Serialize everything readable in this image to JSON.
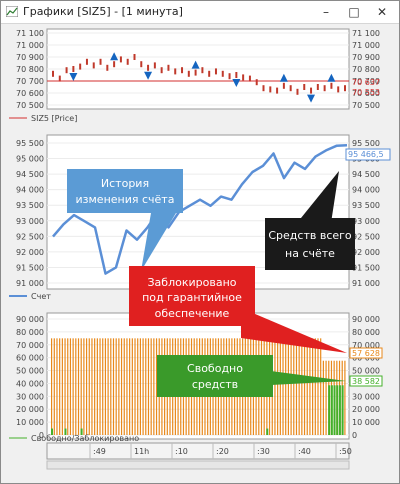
{
  "window": {
    "title": "Графики [SIZ5] - [1 минута]",
    "minimize_glyph": "–",
    "maximize_glyph": "□",
    "close_glyph": "✕",
    "app_icon": "chart-app-icon"
  },
  "colors": {
    "price_bar": "#c0392b",
    "fractal_marker": "#1565c0",
    "price_line": "#d32f2f",
    "account_line": "#5b8fd6",
    "blocked": "#e8891b",
    "free": "#43b02a",
    "callout_blue": "#5b9bd5",
    "callout_black": "#1a1a1a",
    "callout_red": "#e02020",
    "callout_green": "#3a9a2a"
  },
  "panels": {
    "price": {
      "legend": "SIZ5 [Price]",
      "ticks": [
        "71 100",
        "71 000",
        "70 900",
        "70 800",
        "70 700",
        "70 600",
        "70 500"
      ],
      "last_value": "70 637",
      "second_value": "70 553"
    },
    "account": {
      "legend": "Счет",
      "ticks": [
        "95 500",
        "95 000",
        "94 500",
        "94 000",
        "93 500",
        "93 000",
        "92 500",
        "92 000",
        "91 500",
        "91 000"
      ],
      "last_value": "95 466,5"
    },
    "margin": {
      "legend": "Свободно/Заблокировано",
      "ticks": [
        "90 000",
        "80 000",
        "70 000",
        "60 000",
        "50 000",
        "40 000",
        "30 000",
        "20 000",
        "10 000",
        "0"
      ],
      "blocked_value": "57 628",
      "free_value": "38 582"
    }
  },
  "time_axis": {
    "labels": [
      ":49",
      "11h",
      ":10",
      ":20",
      ":30",
      ":40",
      ":50"
    ]
  },
  "callouts": {
    "history": "История изменения счёта",
    "total": "Средств всего на счёте",
    "blocked": "Заблокировано под гарантийное обеспечение",
    "free": "Свободно средств"
  },
  "chart_data": [
    {
      "type": "line",
      "title": "",
      "series": [
        {
          "name": "SIZ5 [Price]",
          "values": [
            70760,
            70720,
            70790,
            70800,
            70820,
            70860,
            70830,
            70860,
            70810,
            70840,
            70880,
            70860,
            70900,
            70840,
            70810,
            70830,
            70790,
            70810,
            70780,
            70790,
            70760,
            70770,
            70790,
            70760,
            70780,
            70760,
            70740,
            70750,
            70730,
            70720,
            70690,
            70640,
            70630,
            70620,
            70660,
            70640,
            70610,
            70650,
            70620,
            70650,
            70640,
            70660,
            70630,
            70640
          ]
        }
      ],
      "ylim": [
        70500,
        71100
      ]
    },
    {
      "type": "line",
      "title": "",
      "series": [
        {
          "name": "Счет",
          "values": [
            92500,
            92900,
            93200,
            93000,
            92800,
            91300,
            91500,
            92700,
            92400,
            92800,
            93300,
            92800,
            93300,
            93500,
            93700,
            93500,
            93800,
            93700,
            94200,
            94600,
            94800,
            95200,
            94400,
            94900,
            94700,
            95100,
            95300,
            95450,
            95466.5
          ]
        }
      ],
      "ylim": [
        90800,
        95800
      ]
    },
    {
      "type": "bar",
      "title": "",
      "series": [
        {
          "name": "Заблокировано",
          "values": [
            75000,
            75000,
            75000,
            75000,
            75000,
            75000,
            75000,
            75000,
            75000,
            75000,
            75000,
            75000,
            75000,
            75000,
            75000,
            75000,
            75000,
            75000,
            75000,
            75000,
            75000,
            75000,
            75000,
            75000,
            75000,
            75000,
            75000,
            75000,
            75000,
            75000,
            75000,
            75000,
            75000,
            75000,
            75000,
            75000,
            75000,
            75000,
            75000,
            75000,
            75000,
            75000,
            75000,
            75000,
            75000,
            75000,
            75000,
            75000,
            75000,
            75000,
            75000,
            75000,
            75000,
            75000,
            75000,
            75000,
            75000,
            75000,
            75000,
            75000,
            75000,
            75000,
            75000,
            75000,
            75000,
            75000,
            75000,
            75000,
            75000,
            75000,
            75000,
            75000,
            75000,
            75000,
            75000,
            75000,
            75000,
            75000,
            75000,
            75000,
            75000,
            75000,
            75000,
            75000,
            75000,
            75000,
            75000,
            75000,
            75000,
            75000,
            75000,
            75000,
            75000,
            75000,
            75000,
            75000,
            75000,
            75000,
            75000,
            75000,
            75000,
            57628,
            57628,
            57628,
            57628,
            57628,
            57628,
            57628,
            57628,
            57628
          ]
        },
        {
          "name": "Свободно",
          "values": [
            5000,
            0,
            0,
            0,
            0,
            5000,
            0,
            0,
            0,
            0,
            0,
            5000,
            0,
            0,
            0,
            0,
            0,
            0,
            0,
            0,
            0,
            0,
            0,
            0,
            0,
            0,
            0,
            0,
            0,
            0,
            0,
            0,
            0,
            0,
            0,
            0,
            0,
            0,
            0,
            0,
            0,
            0,
            0,
            0,
            0,
            0,
            0,
            0,
            0,
            0,
            0,
            0,
            0,
            0,
            0,
            0,
            0,
            0,
            0,
            0,
            0,
            0,
            0,
            0,
            0,
            0,
            0,
            0,
            0,
            0,
            0,
            0,
            0,
            0,
            0,
            0,
            0,
            0,
            0,
            0,
            5000,
            0,
            0,
            0,
            0,
            0,
            0,
            0,
            0,
            0,
            0,
            0,
            0,
            0,
            0,
            0,
            0,
            0,
            0,
            0,
            0,
            0,
            0,
            38582,
            38582,
            38582,
            38582,
            38582,
            38582
          ]
        }
      ],
      "ylim": [
        0,
        90000
      ]
    }
  ]
}
